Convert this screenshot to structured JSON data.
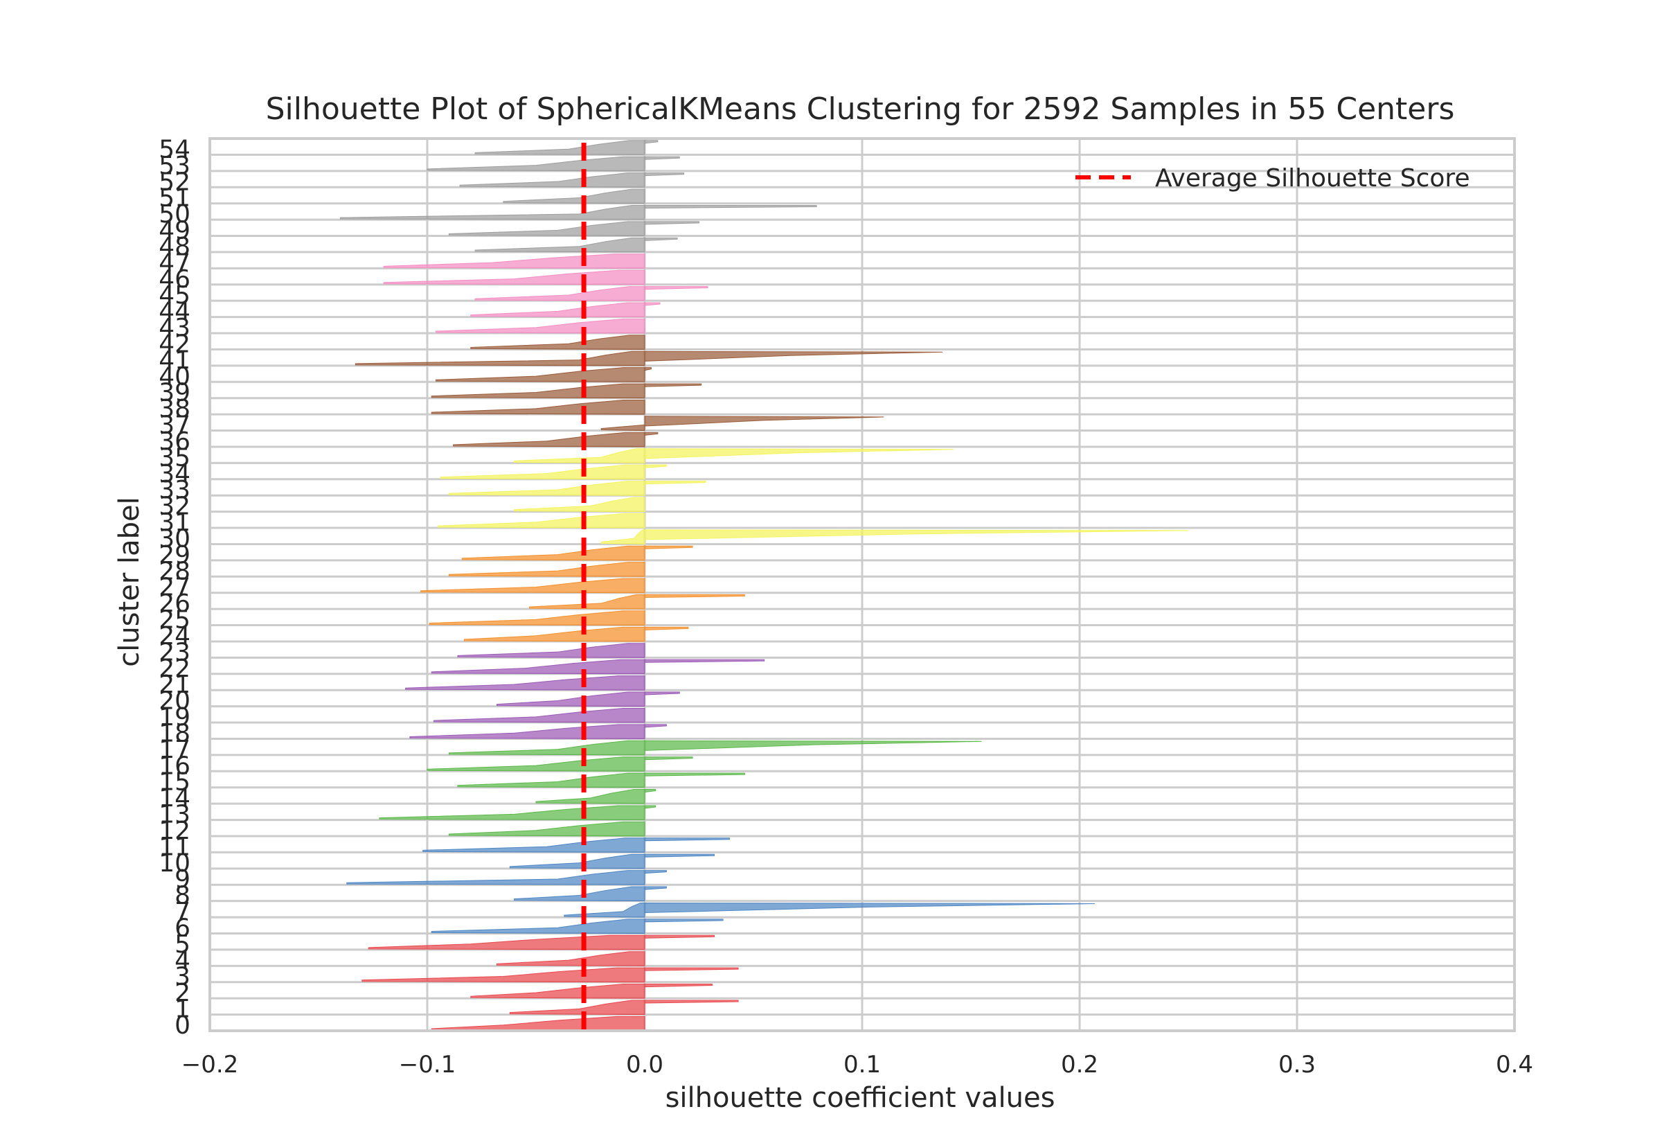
{
  "chart_data": {
    "type": "silhouette",
    "title": "Silhouette Plot of SphericalKMeans Clustering for 2592 Samples in 55 Centers",
    "xlabel": "silhouette coefficient values",
    "ylabel": "cluster label",
    "xlim": [
      -0.2,
      0.4
    ],
    "x_ticks": [
      -0.2,
      -0.1,
      0.0,
      0.1,
      0.2,
      0.3,
      0.4
    ],
    "x_tick_labels": [
      "−0.2",
      "−0.1",
      "0.0",
      "0.1",
      "0.2",
      "0.3",
      "0.4"
    ],
    "n_samples": 2592,
    "n_centers": 55,
    "average_silhouette_score": -0.028,
    "grid": true,
    "legend": {
      "position": "top-right",
      "entries": [
        "Average Silhouette Score"
      ]
    },
    "colors": {
      "red": "#e8474c",
      "blue": "#4e86c4",
      "green": "#5cb84a",
      "purple": "#9b59b6",
      "orange": "#f58f2a",
      "yellow": "#f4f45c",
      "brown": "#9a5b3a",
      "pink": "#f48cc2",
      "gray": "#9e9e9e",
      "average_line": "#ff0000",
      "grid": "#cccccc"
    },
    "clusters": [
      {
        "label": "0",
        "color": "red",
        "min": -0.098,
        "max": 0.0,
        "bulk_min": -0.065,
        "spike": null
      },
      {
        "label": "1",
        "color": "red",
        "min": -0.062,
        "max": 0.043,
        "bulk_min": -0.03,
        "spike": 0.043
      },
      {
        "label": "2",
        "color": "red",
        "min": -0.08,
        "max": 0.031,
        "bulk_min": -0.05,
        "spike": 0.031
      },
      {
        "label": "3",
        "color": "red",
        "min": -0.13,
        "max": 0.043,
        "bulk_min": -0.065,
        "spike": 0.043
      },
      {
        "label": "4",
        "color": "red",
        "min": -0.068,
        "max": 0.0,
        "bulk_min": -0.035,
        "spike": null
      },
      {
        "label": "5",
        "color": "red",
        "min": -0.127,
        "max": 0.032,
        "bulk_min": -0.08,
        "spike": 0.032
      },
      {
        "label": "6",
        "color": "blue",
        "min": -0.098,
        "max": 0.036,
        "bulk_min": -0.04,
        "spike": 0.036
      },
      {
        "label": "7",
        "color": "blue",
        "min": -0.037,
        "max": 0.207,
        "bulk_min": -0.01,
        "spike": 0.207
      },
      {
        "label": "8",
        "color": "blue",
        "min": -0.06,
        "max": 0.01,
        "bulk_min": -0.03,
        "spike": 0.01
      },
      {
        "label": "9",
        "color": "blue",
        "min": -0.137,
        "max": 0.01,
        "bulk_min": -0.04,
        "spike": 0.01
      },
      {
        "label": "10",
        "color": "blue",
        "min": -0.062,
        "max": 0.032,
        "bulk_min": -0.03,
        "spike": 0.032
      },
      {
        "label": "11",
        "color": "blue",
        "min": -0.102,
        "max": 0.039,
        "bulk_min": -0.045,
        "spike": 0.039
      },
      {
        "label": "12",
        "color": "green",
        "min": -0.09,
        "max": 0.0,
        "bulk_min": -0.05,
        "spike": null
      },
      {
        "label": "13",
        "color": "green",
        "min": -0.122,
        "max": 0.005,
        "bulk_min": -0.06,
        "spike": 0.005
      },
      {
        "label": "14",
        "color": "green",
        "min": -0.05,
        "max": 0.005,
        "bulk_min": -0.025,
        "spike": 0.005
      },
      {
        "label": "15",
        "color": "green",
        "min": -0.086,
        "max": 0.046,
        "bulk_min": -0.04,
        "spike": 0.046
      },
      {
        "label": "16",
        "color": "green",
        "min": -0.1,
        "max": 0.022,
        "bulk_min": -0.05,
        "spike": 0.022
      },
      {
        "label": "17",
        "color": "green",
        "min": -0.09,
        "max": 0.155,
        "bulk_min": -0.04,
        "spike": 0.155
      },
      {
        "label": "18",
        "color": "purple",
        "min": -0.108,
        "max": 0.01,
        "bulk_min": -0.06,
        "spike": 0.01
      },
      {
        "label": "19",
        "color": "purple",
        "min": -0.097,
        "max": 0.0,
        "bulk_min": -0.05,
        "spike": null
      },
      {
        "label": "20",
        "color": "purple",
        "min": -0.068,
        "max": 0.016,
        "bulk_min": -0.04,
        "spike": 0.016
      },
      {
        "label": "21",
        "color": "purple",
        "min": -0.11,
        "max": 0.0,
        "bulk_min": -0.06,
        "spike": null
      },
      {
        "label": "22",
        "color": "purple",
        "min": -0.098,
        "max": 0.055,
        "bulk_min": -0.055,
        "spike": 0.055
      },
      {
        "label": "23",
        "color": "purple",
        "min": -0.086,
        "max": 0.0,
        "bulk_min": -0.04,
        "spike": null
      },
      {
        "label": "24",
        "color": "orange",
        "min": -0.083,
        "max": 0.02,
        "bulk_min": -0.05,
        "spike": 0.02
      },
      {
        "label": "25",
        "color": "orange",
        "min": -0.099,
        "max": 0.0,
        "bulk_min": -0.05,
        "spike": null
      },
      {
        "label": "26",
        "color": "orange",
        "min": -0.053,
        "max": 0.046,
        "bulk_min": -0.02,
        "spike": 0.046
      },
      {
        "label": "27",
        "color": "orange",
        "min": -0.103,
        "max": 0.0,
        "bulk_min": -0.05,
        "spike": null
      },
      {
        "label": "28",
        "color": "orange",
        "min": -0.09,
        "max": 0.0,
        "bulk_min": -0.04,
        "spike": null
      },
      {
        "label": "29",
        "color": "orange",
        "min": -0.084,
        "max": 0.022,
        "bulk_min": -0.04,
        "spike": 0.022
      },
      {
        "label": "30",
        "color": "yellow",
        "min": -0.02,
        "max": 0.25,
        "bulk_min": -0.005,
        "spike": 0.25
      },
      {
        "label": "31",
        "color": "yellow",
        "min": -0.095,
        "max": 0.0,
        "bulk_min": -0.05,
        "spike": null
      },
      {
        "label": "32",
        "color": "yellow",
        "min": -0.06,
        "max": 0.0,
        "bulk_min": -0.025,
        "spike": null
      },
      {
        "label": "33",
        "color": "yellow",
        "min": -0.09,
        "max": 0.028,
        "bulk_min": -0.04,
        "spike": 0.028
      },
      {
        "label": "34",
        "color": "yellow",
        "min": -0.094,
        "max": 0.01,
        "bulk_min": -0.045,
        "spike": 0.01
      },
      {
        "label": "35",
        "color": "yellow",
        "min": -0.06,
        "max": 0.142,
        "bulk_min": -0.02,
        "spike": 0.142
      },
      {
        "label": "36",
        "color": "brown",
        "min": -0.088,
        "max": 0.006,
        "bulk_min": -0.045,
        "spike": 0.006
      },
      {
        "label": "37",
        "color": "brown",
        "min": -0.02,
        "max": 0.11,
        "bulk_min": 0.0,
        "spike": 0.11
      },
      {
        "label": "38",
        "color": "brown",
        "min": -0.098,
        "max": 0.0,
        "bulk_min": -0.05,
        "spike": null
      },
      {
        "label": "39",
        "color": "brown",
        "min": -0.098,
        "max": 0.026,
        "bulk_min": -0.05,
        "spike": 0.026
      },
      {
        "label": "40",
        "color": "brown",
        "min": -0.096,
        "max": 0.003,
        "bulk_min": -0.05,
        "spike": 0.003
      },
      {
        "label": "41",
        "color": "brown",
        "min": -0.133,
        "max": 0.137,
        "bulk_min": -0.03,
        "spike": 0.137
      },
      {
        "label": "42",
        "color": "brown",
        "min": -0.08,
        "max": 0.0,
        "bulk_min": -0.035,
        "spike": null
      },
      {
        "label": "43",
        "color": "pink",
        "min": -0.096,
        "max": 0.0,
        "bulk_min": -0.05,
        "spike": null
      },
      {
        "label": "44",
        "color": "pink",
        "min": -0.08,
        "max": 0.007,
        "bulk_min": -0.04,
        "spike": 0.007
      },
      {
        "label": "45",
        "color": "pink",
        "min": -0.078,
        "max": 0.029,
        "bulk_min": -0.035,
        "spike": 0.029
      },
      {
        "label": "46",
        "color": "pink",
        "min": -0.12,
        "max": 0.0,
        "bulk_min": -0.06,
        "spike": null
      },
      {
        "label": "47",
        "color": "pink",
        "min": -0.12,
        "max": 0.0,
        "bulk_min": -0.07,
        "spike": null
      },
      {
        "label": "48",
        "color": "gray",
        "min": -0.078,
        "max": 0.015,
        "bulk_min": -0.03,
        "spike": 0.015
      },
      {
        "label": "49",
        "color": "gray",
        "min": -0.09,
        "max": 0.025,
        "bulk_min": -0.04,
        "spike": 0.025
      },
      {
        "label": "50",
        "color": "gray",
        "min": -0.14,
        "max": 0.079,
        "bulk_min": -0.03,
        "spike": 0.079
      },
      {
        "label": "51",
        "color": "gray",
        "min": -0.065,
        "max": 0.0,
        "bulk_min": -0.03,
        "spike": null
      },
      {
        "label": "52",
        "color": "gray",
        "min": -0.085,
        "max": 0.018,
        "bulk_min": -0.04,
        "spike": 0.018
      },
      {
        "label": "53",
        "color": "gray",
        "min": -0.1,
        "max": 0.016,
        "bulk_min": -0.05,
        "spike": 0.016
      },
      {
        "label": "54",
        "color": "gray",
        "min": -0.078,
        "max": 0.006,
        "bulk_min": -0.035,
        "spike": 0.006
      }
    ]
  }
}
